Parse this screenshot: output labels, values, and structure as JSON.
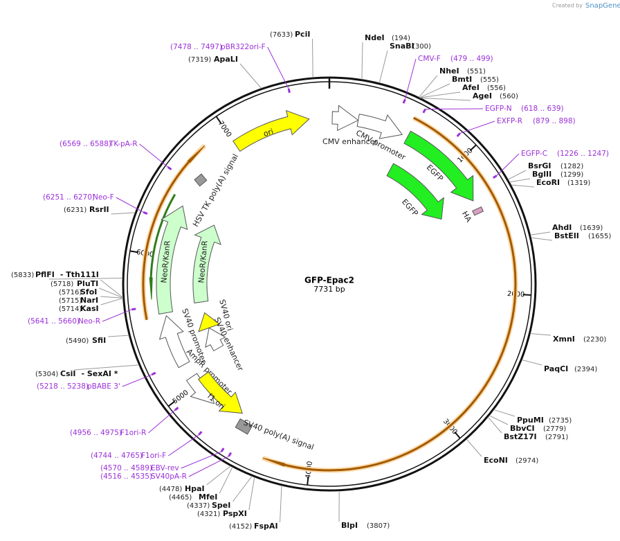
{
  "header": {
    "credit": "Created by",
    "brand": "SnapGene"
  },
  "plasmid": {
    "name": "GFP-Epac2",
    "size": "7731 bp"
  },
  "ruler": [
    1000,
    2000,
    3000,
    4000,
    5000,
    6000,
    7000
  ],
  "enzymes": [
    {
      "name": "NdeI",
      "pos": "(194)"
    },
    {
      "name": "SnaBI",
      "pos": "(300)"
    },
    {
      "name": "NheI",
      "pos": "(551)"
    },
    {
      "name": "BmtI",
      "pos": "(555)"
    },
    {
      "name": "AfeI",
      "pos": "(556)"
    },
    {
      "name": "AgeI",
      "pos": "(560)"
    },
    {
      "name": "BsrGI",
      "pos": "(1282)"
    },
    {
      "name": "BglII",
      "pos": "(1299)"
    },
    {
      "name": "EcoRI",
      "pos": "(1319)"
    },
    {
      "name": "AhdI",
      "pos": "(1639)"
    },
    {
      "name": "BstEII",
      "pos": "(1655)"
    },
    {
      "name": "XmnI",
      "pos": "(2230)"
    },
    {
      "name": "PaqCI",
      "pos": "(2394)"
    },
    {
      "name": "PpuMI",
      "pos": "(2735)"
    },
    {
      "name": "BbvCI",
      "pos": "(2779)"
    },
    {
      "name": "BstZ17I",
      "pos": "(2791)"
    },
    {
      "name": "EcoNI",
      "pos": "(2974)"
    },
    {
      "name": "BlpI",
      "pos": "(3807)"
    },
    {
      "name": "PciI",
      "pos": "(7633)"
    },
    {
      "name": "ApaLI",
      "pos": "(7319)"
    },
    {
      "name": "RsrII",
      "pos": "(6231)"
    },
    {
      "name": "PflFI",
      "also": "- Tth111I",
      "pos": "(5833)"
    },
    {
      "name": "PluTI",
      "pos": "(5718)"
    },
    {
      "name": "SfoI",
      "pos": "(5716)"
    },
    {
      "name": "NarI",
      "pos": "(5715)"
    },
    {
      "name": "KasI",
      "pos": "(5714)"
    },
    {
      "name": "SfiI",
      "pos": "(5490)"
    },
    {
      "name": "CsiI",
      "also": "- SexAI *",
      "pos": "(5304)"
    },
    {
      "name": "HpaI",
      "pos": "(4478)"
    },
    {
      "name": "MfeI",
      "pos": "(4465)"
    },
    {
      "name": "SpeI",
      "pos": "(4337)"
    },
    {
      "name": "PspXI",
      "pos": "(4321)"
    },
    {
      "name": "FspAI",
      "pos": "(4152)"
    }
  ],
  "primers": [
    {
      "name": "pBR322ori-F",
      "range": "(7478 .. 7497)"
    },
    {
      "name": "CMV-F",
      "range": "(479 .. 499)"
    },
    {
      "name": "EGFP-N",
      "range": "(618 .. 639)"
    },
    {
      "name": "EXFP-R",
      "range": "(879 .. 898)"
    },
    {
      "name": "EGFP-C",
      "range": "(1226 .. 1247)"
    },
    {
      "name": "TK-pA-R",
      "range": "(6569 .. 6588)"
    },
    {
      "name": "Neo-F",
      "range": "(6251 .. 6270)"
    },
    {
      "name": "Neo-R",
      "range": "(5641 .. 5660)"
    },
    {
      "name": "pBABE 3'",
      "range": "(5218 .. 5238)"
    },
    {
      "name": "F1ori-R",
      "range": "(4956 .. 4975)"
    },
    {
      "name": "F1ori-F",
      "range": "(4744 .. 4765)"
    },
    {
      "name": "EBV-rev",
      "range": "(4570 .. 4589)"
    },
    {
      "name": "SV40pA-R",
      "range": "(4516 .. 4535)"
    }
  ],
  "features": [
    "ori",
    "CMV enhancer",
    "CMV promoter",
    "EGFP",
    "EGFP",
    "HA",
    "HSV TK poly(A) signal",
    "NeoR/KanR",
    "NeoR/KanR",
    "SV40 ori",
    "SV40 enhancer",
    "SV40 promoter",
    "AmpR promoter",
    "f1 ori",
    "SV40 poly(A) signal"
  ]
}
